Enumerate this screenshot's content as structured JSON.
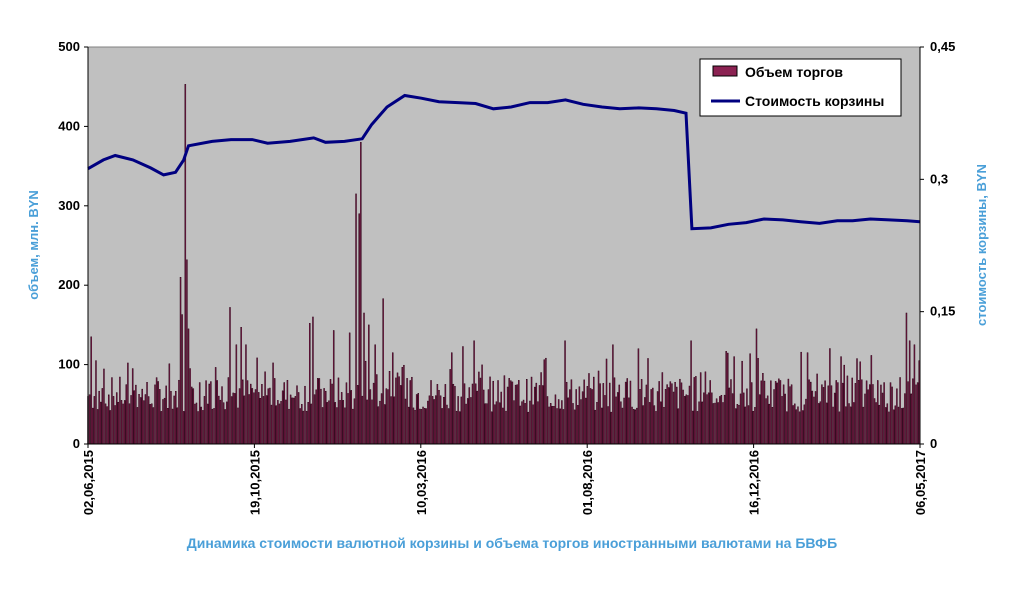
{
  "chart_data": {
    "type": "bar+line",
    "caption": "Динамика стоимости валютной корзины и объема торгов иностранными валютами на БВФБ",
    "ylabel_left": "объем, млн. BYN",
    "ylabel_right": "стоимость корзины, BYN",
    "y_left": {
      "range": [
        0,
        500
      ],
      "ticks": [
        "0",
        "100",
        "200",
        "300",
        "400",
        "500"
      ]
    },
    "y_right": {
      "range": [
        0,
        0.45
      ],
      "ticks": [
        "0",
        "0,15",
        "0,3",
        "0,45"
      ]
    },
    "x_ticks": [
      "02,06,2015",
      "19,10,2015",
      "10,03,2016",
      "01,08,2016",
      "16,12,2016",
      "06,05,2017"
    ],
    "x_range": [
      "2015-06-02",
      "2017-05-06"
    ],
    "grid": false,
    "legend_position": "top-right",
    "colors": {
      "bars": "#8b2252",
      "line": "#000080",
      "plot_bg": "#c0c0c0",
      "axis_title": "#4a9fd8"
    },
    "series": [
      {
        "name": "Объем торгов",
        "type": "bar",
        "axis": "left",
        "note_points": "sampled key points; remaining days interpolated as typical daily volumes",
        "points": [
          [
            "2015-06-02",
            60
          ],
          [
            "2015-06-05",
            135
          ],
          [
            "2015-06-09",
            105
          ],
          [
            "2015-06-15",
            70
          ],
          [
            "2015-07-01",
            55
          ],
          [
            "2015-07-10",
            95
          ],
          [
            "2015-07-25",
            50
          ],
          [
            "2015-08-10",
            45
          ],
          [
            "2015-08-20",
            210
          ],
          [
            "2015-08-22",
            163
          ],
          [
            "2015-08-24",
            453
          ],
          [
            "2015-08-25",
            232
          ],
          [
            "2015-08-26",
            145
          ],
          [
            "2015-08-28",
            95
          ],
          [
            "2015-09-10",
            60
          ],
          [
            "2015-09-20",
            80
          ],
          [
            "2015-10-01",
            172
          ],
          [
            "2015-10-06",
            125
          ],
          [
            "2015-10-10",
            147
          ],
          [
            "2015-10-14",
            125
          ],
          [
            "2015-10-20",
            70
          ],
          [
            "2015-11-10",
            55
          ],
          [
            "2015-11-25",
            60
          ],
          [
            "2015-12-08",
            152
          ],
          [
            "2015-12-10",
            160
          ],
          [
            "2015-12-20",
            70
          ],
          [
            "2015-12-28",
            143
          ],
          [
            "2016-01-05",
            55
          ],
          [
            "2016-01-10",
            140
          ],
          [
            "2016-01-15",
            315
          ],
          [
            "2016-01-18",
            290
          ],
          [
            "2016-01-20",
            380
          ],
          [
            "2016-01-22",
            165
          ],
          [
            "2016-01-26",
            150
          ],
          [
            "2016-02-01",
            125
          ],
          [
            "2016-02-07",
            183
          ],
          [
            "2016-02-15",
            115
          ],
          [
            "2016-03-01",
            80
          ],
          [
            "2016-03-20",
            60
          ],
          [
            "2016-04-05",
            115
          ],
          [
            "2016-04-25",
            130
          ],
          [
            "2016-05-15",
            80
          ],
          [
            "2016-06-20",
            90
          ],
          [
            "2016-07-10",
            130
          ],
          [
            "2016-08-01",
            70
          ],
          [
            "2016-08-20",
            125
          ],
          [
            "2016-09-10",
            120
          ],
          [
            "2016-10-01",
            90
          ],
          [
            "2016-10-25",
            130
          ],
          [
            "2016-11-10",
            80
          ],
          [
            "2016-12-01",
            110
          ],
          [
            "2016-12-20",
            145
          ],
          [
            "2017-01-10",
            60
          ],
          [
            "2017-02-01",
            115
          ],
          [
            "2017-03-01",
            110
          ],
          [
            "2017-04-01",
            80
          ],
          [
            "2017-04-25",
            165
          ],
          [
            "2017-04-28",
            130
          ],
          [
            "2017-05-02",
            125
          ],
          [
            "2017-05-06",
            105
          ]
        ]
      },
      {
        "name": "Стоимость корзины",
        "type": "line",
        "axis": "right",
        "points": [
          [
            "2015-06-02",
            0.312
          ],
          [
            "2015-06-15",
            0.322
          ],
          [
            "2015-06-25",
            0.327
          ],
          [
            "2015-07-10",
            0.322
          ],
          [
            "2015-07-25",
            0.313
          ],
          [
            "2015-08-05",
            0.305
          ],
          [
            "2015-08-15",
            0.308
          ],
          [
            "2015-08-22",
            0.322
          ],
          [
            "2015-08-26",
            0.338
          ],
          [
            "2015-09-15",
            0.343
          ],
          [
            "2015-10-01",
            0.345
          ],
          [
            "2015-10-19",
            0.345
          ],
          [
            "2015-11-01",
            0.341
          ],
          [
            "2015-11-20",
            0.343
          ],
          [
            "2015-12-10",
            0.347
          ],
          [
            "2015-12-20",
            0.342
          ],
          [
            "2016-01-05",
            0.343
          ],
          [
            "2016-01-20",
            0.346
          ],
          [
            "2016-01-28",
            0.362
          ],
          [
            "2016-02-10",
            0.382
          ],
          [
            "2016-02-25",
            0.395
          ],
          [
            "2016-03-10",
            0.392
          ],
          [
            "2016-03-25",
            0.388
          ],
          [
            "2016-04-10",
            0.387
          ],
          [
            "2016-04-25",
            0.386
          ],
          [
            "2016-05-10",
            0.38
          ],
          [
            "2016-05-25",
            0.382
          ],
          [
            "2016-06-10",
            0.387
          ],
          [
            "2016-06-25",
            0.387
          ],
          [
            "2016-07-10",
            0.39
          ],
          [
            "2016-07-25",
            0.385
          ],
          [
            "2016-08-10",
            0.382
          ],
          [
            "2016-08-25",
            0.38
          ],
          [
            "2016-09-10",
            0.381
          ],
          [
            "2016-09-25",
            0.38
          ],
          [
            "2016-10-10",
            0.378
          ],
          [
            "2016-10-20",
            0.375
          ],
          [
            "2016-10-25",
            0.244
          ],
          [
            "2016-11-10",
            0.245
          ],
          [
            "2016-11-25",
            0.249
          ],
          [
            "2016-12-10",
            0.251
          ],
          [
            "2016-12-25",
            0.255
          ],
          [
            "2017-01-10",
            0.254
          ],
          [
            "2017-01-25",
            0.252
          ],
          [
            "2017-02-10",
            0.25
          ],
          [
            "2017-02-25",
            0.253
          ],
          [
            "2017-03-10",
            0.253
          ],
          [
            "2017-03-25",
            0.255
          ],
          [
            "2017-04-10",
            0.254
          ],
          [
            "2017-04-25",
            0.253
          ],
          [
            "2017-05-06",
            0.252
          ]
        ]
      }
    ]
  }
}
